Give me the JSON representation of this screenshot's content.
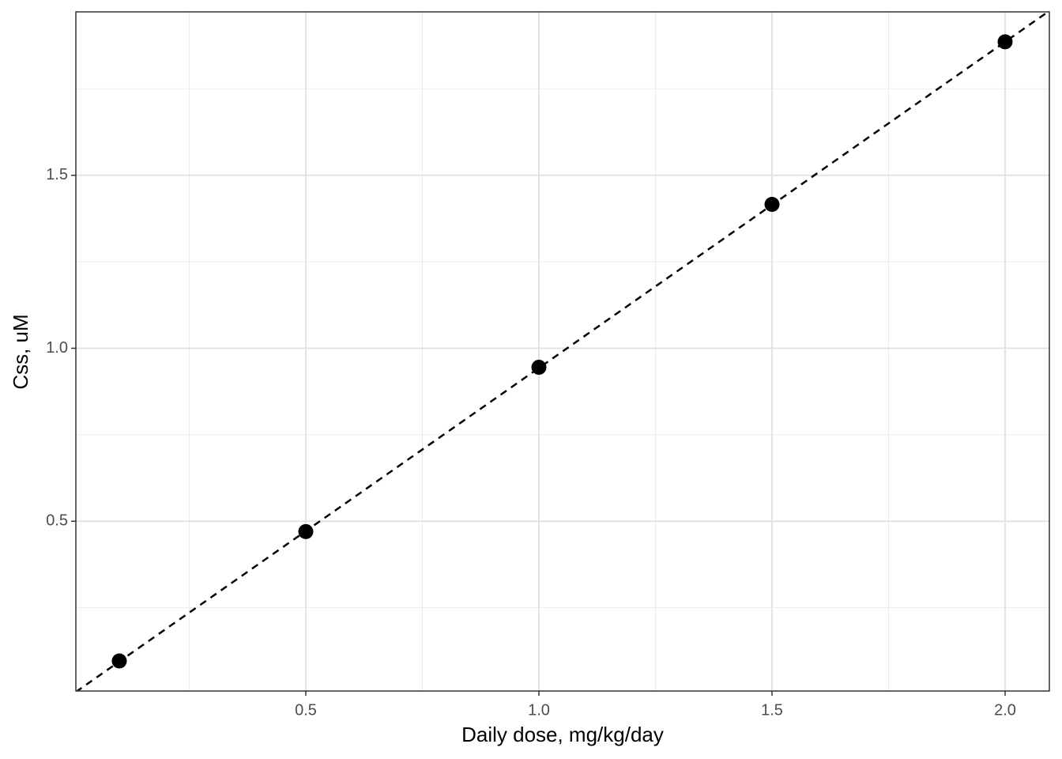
{
  "chart_data": {
    "type": "scatter",
    "x_label": "Daily dose, mg/kg/day",
    "y_label": "Css, uM",
    "x": [
      0.1,
      0.5,
      1.0,
      1.5,
      2.0
    ],
    "values": [
      0.096,
      0.47,
      0.945,
      1.416,
      1.886
    ],
    "color": "#000000",
    "fit_line": {
      "slope": 0.943,
      "intercept": 0,
      "color": "#000000"
    },
    "xlim": [
      0.0068,
      2.0949
    ],
    "ylim": [
      0.0091,
      1.9726
    ],
    "xticks": [
      0.5,
      {
        "value": 1,
        "label": "1.0"
      },
      1.5,
      {
        "value": 2,
        "label": "2.0"
      }
    ],
    "yticks": [
      0.5,
      {
        "value": 1,
        "label": "1.0"
      },
      1.5
    ],
    "x_minor_grid": [
      0.25,
      0.75,
      1.25,
      1.75
    ],
    "y_minor_grid": [
      0.25,
      0.75,
      1.25,
      1.75
    ],
    "grid": true
  }
}
